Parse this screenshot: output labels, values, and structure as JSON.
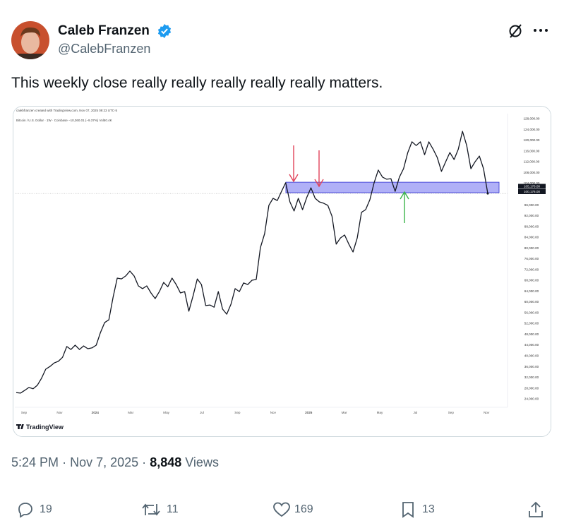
{
  "author": {
    "name": "Caleb Franzen",
    "handle": "@CalebFranzen"
  },
  "text": "This weekly close really really really really really matters.",
  "embedded_chart": {
    "type": "line",
    "header": "calebfranzen created with TradingView.com, Nov 07, 2025 09:23 UTC-5",
    "legend": "Bitcoin / U.S. Dollar · 1W · Coinbase  −10,360.01 (−9.37%)  Vol50.4K",
    "color": "#131722",
    "values": [
      26300,
      26100,
      27100,
      28200,
      27700,
      29000,
      31600,
      35000,
      36000,
      37300,
      37900,
      39400,
      43400,
      42300,
      43900,
      42300,
      43600,
      42600,
      42900,
      43900,
      48600,
      52300,
      53300,
      61700,
      68800,
      68500,
      69600,
      71400,
      69600,
      65900,
      64900,
      65900,
      63300,
      61200,
      63800,
      67200,
      65600,
      68800,
      66400,
      63300,
      63800,
      56500,
      62200,
      68500,
      66400,
      58600,
      58800,
      58000,
      63800,
      57300,
      55400,
      59100,
      64900,
      63800,
      67000,
      66400,
      68000,
      68300,
      80100,
      85300,
      95800,
      98400,
      97600,
      101000,
      104200,
      97100,
      93700,
      98400,
      94200,
      98700,
      102300,
      98400,
      97100,
      96600,
      95800,
      91800,
      81400,
      83700,
      84800,
      81400,
      78500,
      83700,
      93200,
      94200,
      97900,
      104200,
      108900,
      106300,
      105500,
      105700,
      101000,
      106300,
      109400,
      115400,
      119400,
      118000,
      119400,
      114600,
      119400,
      116700,
      113600,
      108400,
      112000,
      115400,
      112800,
      116700,
      123300,
      118000,
      109400,
      112000,
      114100,
      109400,
      100200
    ],
    "xlabels": [
      "Sep",
      "Nov",
      "2024",
      "Mar",
      "May",
      "Jul",
      "Sep",
      "Nov",
      "2025",
      "Mar",
      "May",
      "Jul",
      "Sep",
      "Nov"
    ],
    "ylim": [
      21000,
      130000
    ],
    "yticks": [
      {
        "value": 128000,
        "label": "128,000.00"
      },
      {
        "value": 124000,
        "label": "124,000.00"
      },
      {
        "value": 120000,
        "label": "120,000.00"
      },
      {
        "value": 116000,
        "label": "116,000.00"
      },
      {
        "value": 112000,
        "label": "112,000.00"
      },
      {
        "value": 108000,
        "label": "108,000.00"
      },
      {
        "value": 104000,
        "label": "104,000.00"
      },
      {
        "value": 96000,
        "label": "96,000.00"
      },
      {
        "value": 92000,
        "label": "92,000.00"
      },
      {
        "value": 88000,
        "label": "88,000.00"
      },
      {
        "value": 84000,
        "label": "84,000.00"
      },
      {
        "value": 80000,
        "label": "80,000.00"
      },
      {
        "value": 76000,
        "label": "76,000.00"
      },
      {
        "value": 72000,
        "label": "72,000.00"
      },
      {
        "value": 68000,
        "label": "68,000.00"
      },
      {
        "value": 64000,
        "label": "64,000.00"
      },
      {
        "value": 60000,
        "label": "60,000.00"
      },
      {
        "value": 56000,
        "label": "56,000.00"
      },
      {
        "value": 52000,
        "label": "52,000.00"
      },
      {
        "value": 48000,
        "label": "48,000.00"
      },
      {
        "value": 44000,
        "label": "44,000.00"
      },
      {
        "value": 40000,
        "label": "40,000.00"
      },
      {
        "value": 36000,
        "label": "36,000.00"
      },
      {
        "value": 32000,
        "label": "32,000.00"
      },
      {
        "value": 28000,
        "label": "28,000.00"
      },
      {
        "value": 24000,
        "label": "24,000.00"
      }
    ],
    "zone": [
      100500,
      104400
    ],
    "zone_color": "#6f6ff0",
    "price_labels": [
      "105,176.00",
      "100,176.00"
    ],
    "brand": "TradingView"
  },
  "time": "5:24 PM",
  "separator": "·",
  "date": "Nov 7, 2025",
  "views": "8,848",
  "views_label": "Views",
  "actions": {
    "replies": 19,
    "reposts": 11,
    "likes": 169,
    "bookmarks": 13
  }
}
